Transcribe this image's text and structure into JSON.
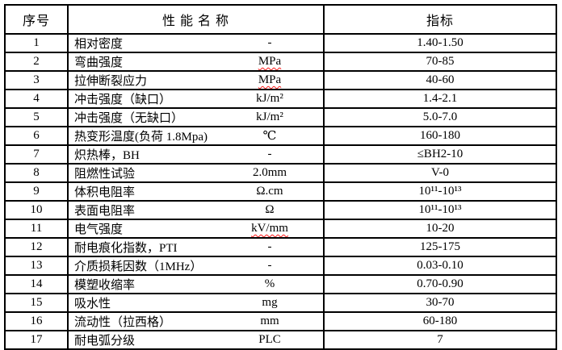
{
  "table": {
    "headers": {
      "no": "序号",
      "name": "性 能 名 称",
      "indicator": "指标"
    },
    "rows": [
      {
        "no": "1",
        "name": "相对密度",
        "unit": "-",
        "unit_misspelled": false,
        "value": "1.40-1.50"
      },
      {
        "no": "2",
        "name": "弯曲强度",
        "unit": "MPa",
        "unit_misspelled": true,
        "value": "70-85"
      },
      {
        "no": "3",
        "name": "拉伸断裂应力",
        "unit": "MPa",
        "unit_misspelled": true,
        "value": "40-60"
      },
      {
        "no": "4",
        "name": "冲击强度（缺口）",
        "unit": "kJ/m²",
        "unit_misspelled": false,
        "value": "1.4-2.1"
      },
      {
        "no": "5",
        "name": "冲击强度（无缺口）",
        "unit": "kJ/m²",
        "unit_misspelled": false,
        "value": "5.0-7.0"
      },
      {
        "no": "6",
        "name": "热变形温度(负荷 1.8Mpa)",
        "unit": "℃",
        "unit_misspelled": false,
        "value": "160-180"
      },
      {
        "no": "7",
        "name": "炽热棒，BH",
        "unit": "-",
        "unit_misspelled": false,
        "value": "≤BH2-10"
      },
      {
        "no": "8",
        "name": "阻燃性试验",
        "unit": "2.0mm",
        "unit_misspelled": false,
        "value": "V-0"
      },
      {
        "no": "9",
        "name": "体积电阻率",
        "unit": "Ω.cm",
        "unit_misspelled": false,
        "value": "10¹¹-10¹³"
      },
      {
        "no": "10",
        "name": "表面电阻率",
        "unit": "Ω",
        "unit_misspelled": false,
        "value": "10¹¹-10¹³"
      },
      {
        "no": "11",
        "name": "电气强度",
        "unit": "kV/mm",
        "unit_misspelled": true,
        "value": "10-20"
      },
      {
        "no": "12",
        "name": "耐电痕化指数，PTI",
        "unit": "-",
        "unit_misspelled": false,
        "value": "125-175"
      },
      {
        "no": "13",
        "name": "介质损耗因数（1MHz）",
        "unit": "-",
        "unit_misspelled": false,
        "value": "0.03-0.10"
      },
      {
        "no": "14",
        "name": "模塑收缩率",
        "unit": "%",
        "unit_misspelled": false,
        "value": "0.70-0.90"
      },
      {
        "no": "15",
        "name": "吸水性",
        "unit": "mg",
        "unit_misspelled": false,
        "value": "30-70"
      },
      {
        "no": "16",
        "name": "流动性（拉西格）",
        "unit": "mm",
        "unit_misspelled": false,
        "value": "60-180"
      },
      {
        "no": "17",
        "name": "耐电弧分级",
        "unit": "PLC",
        "unit_misspelled": false,
        "value": "7"
      }
    ],
    "colors": {
      "border": "#000000",
      "text": "#000000",
      "spellcheck_underline": "#ff1a1a",
      "background": "#ffffff"
    }
  }
}
